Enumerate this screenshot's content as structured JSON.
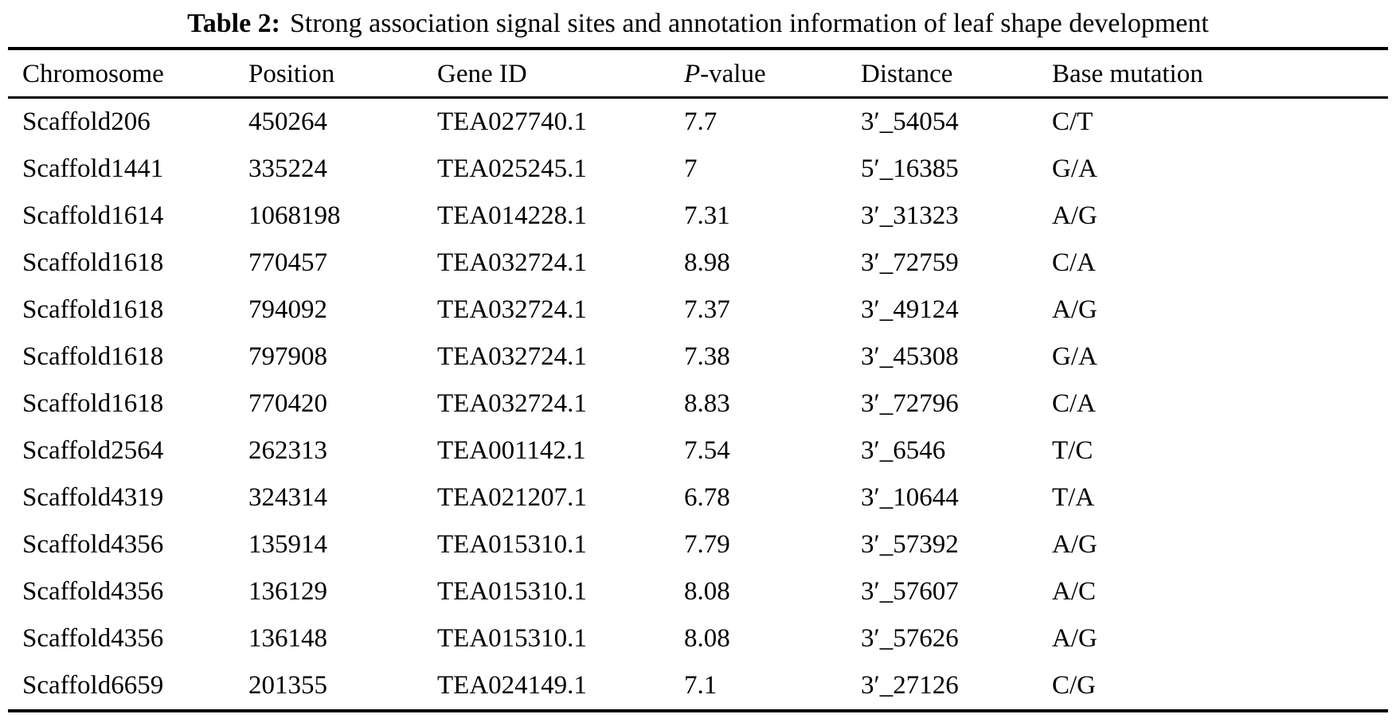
{
  "page": {
    "background": "#ffffff",
    "text_color": "#000000"
  },
  "table": {
    "title": {
      "label": "Table 2:",
      "caption": "Strong association signal sites and annotation information of leaf shape development"
    },
    "header": {
      "chromosome": "Chromosome",
      "position": "Position",
      "gene_id": "Gene ID",
      "p_value_italic": "P",
      "p_value_rest": "-value",
      "distance": "Distance",
      "base_mutation": "Base mutation"
    },
    "rows": [
      [
        "Scaffold206",
        "450264",
        "TEA027740.1",
        "7.7",
        "3′_54054",
        "C/T"
      ],
      [
        "Scaffold1441",
        "335224",
        "TEA025245.1",
        "7",
        "5′_16385",
        "G/A"
      ],
      [
        "Scaffold1614",
        "1068198",
        "TEA014228.1",
        "7.31",
        "3′_31323",
        "A/G"
      ],
      [
        "Scaffold1618",
        "770457",
        "TEA032724.1",
        "8.98",
        "3′_72759",
        "C/A"
      ],
      [
        "Scaffold1618",
        "794092",
        "TEA032724.1",
        "7.37",
        "3′_49124",
        "A/G"
      ],
      [
        "Scaffold1618",
        "797908",
        "TEA032724.1",
        "7.38",
        "3′_45308",
        "G/A"
      ],
      [
        "Scaffold1618",
        "770420",
        "TEA032724.1",
        "8.83",
        "3′_72796",
        "C/A"
      ],
      [
        "Scaffold2564",
        "262313",
        "TEA001142.1",
        "7.54",
        "3′_6546",
        "T/C"
      ],
      [
        "Scaffold4319",
        "324314",
        "TEA021207.1",
        "6.78",
        "3′_10644",
        "T/A"
      ],
      [
        "Scaffold4356",
        "135914",
        "TEA015310.1",
        "7.79",
        "3′_57392",
        "A/G"
      ],
      [
        "Scaffold4356",
        "136129",
        "TEA015310.1",
        "8.08",
        "3′_57607",
        "A/C"
      ],
      [
        "Scaffold4356",
        "136148",
        "TEA015310.1",
        "8.08",
        "3′_57626",
        "A/G"
      ],
      [
        "Scaffold6659",
        "201355",
        "TEA024149.1",
        "7.1",
        "3′_27126",
        "C/G"
      ]
    ]
  }
}
